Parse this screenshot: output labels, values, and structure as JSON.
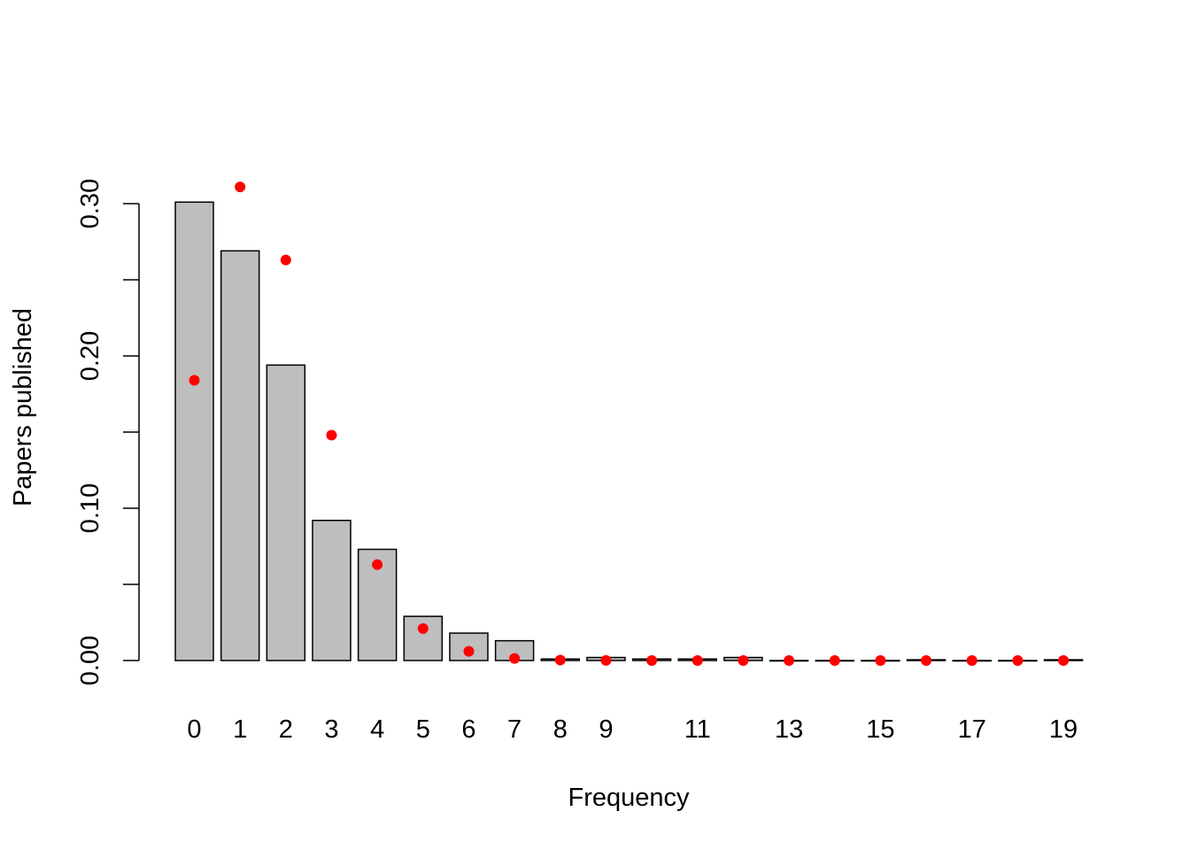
{
  "chart_data": {
    "type": "bar",
    "title": "",
    "xlabel": "Frequency",
    "ylabel": "Papers published",
    "categories": [
      "0",
      "1",
      "2",
      "3",
      "4",
      "5",
      "6",
      "7",
      "8",
      "9",
      "10",
      "11",
      "12",
      "13",
      "14",
      "15",
      "16",
      "17",
      "18",
      "19"
    ],
    "shown_x_tick_labels": [
      "0",
      "1",
      "2",
      "3",
      "4",
      "5",
      "6",
      "7",
      "8",
      "9",
      "11",
      "13",
      "15",
      "17",
      "19"
    ],
    "ylim": [
      0,
      0.3
    ],
    "y_ticks": [
      0,
      0.05,
      0.1,
      0.15,
      0.2,
      0.25,
      0.3
    ],
    "y_tick_labels": [
      "0.00",
      "0.10",
      "0.20",
      "0.30"
    ],
    "grid": false,
    "series": [
      {
        "type": "bar",
        "color": "#bebebe",
        "values": [
          0.301,
          0.269,
          0.194,
          0.092,
          0.073,
          0.029,
          0.018,
          0.013,
          0.001,
          0.002,
          0.001,
          0.001,
          0.002,
          0,
          0,
          0,
          0.0005,
          0,
          0,
          0.0005
        ]
      },
      {
        "type": "scatter",
        "color": "#ff0000",
        "values": [
          0.184,
          0.311,
          0.263,
          0.148,
          0.063,
          0.021,
          0.006,
          0.0014,
          0.0003,
          0.0001,
          0,
          0,
          0,
          0,
          0,
          0,
          0,
          0,
          0,
          0
        ]
      }
    ]
  }
}
